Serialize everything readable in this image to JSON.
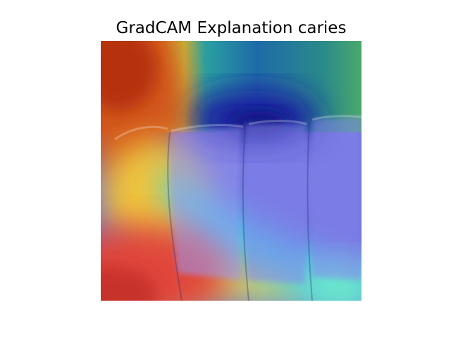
{
  "figure": {
    "title": "GradCAM Explanation caries"
  },
  "image": {
    "subject": "dental x-ray of front teeth with GradCAM heatmap overlay",
    "colormap": "jet",
    "colors": {
      "deep_blue": "#1a1fa0",
      "blue": "#3b3fd0",
      "violet_teeth": "#7a74e6",
      "cyan": "#3fd8e6",
      "teal": "#1b8a9a",
      "green": "#4aa86a",
      "yellow": "#f2e24a",
      "orange": "#f08a2a",
      "red": "#e0463a",
      "dark_red": "#b02a1a"
    }
  }
}
